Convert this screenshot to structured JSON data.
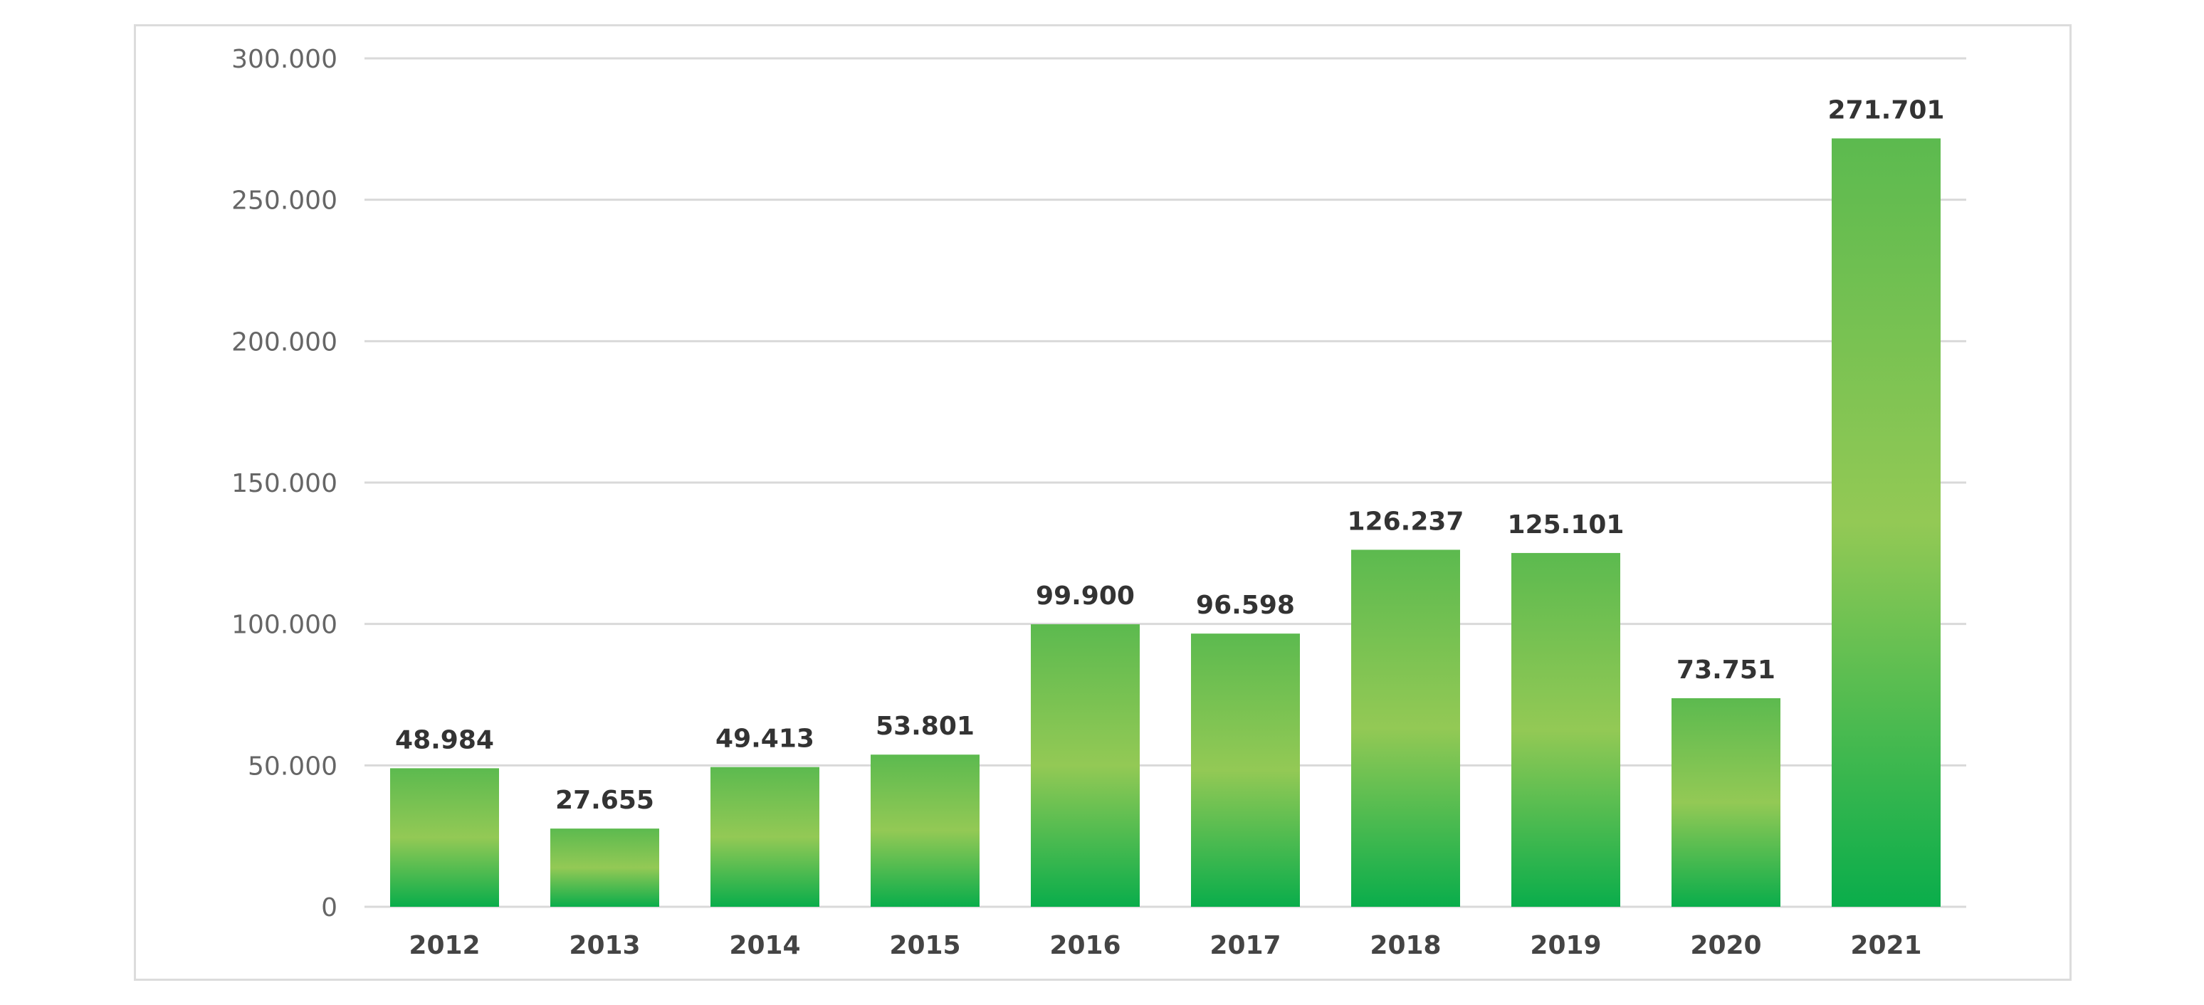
{
  "chart_data": {
    "type": "bar",
    "title": "",
    "xlabel": "",
    "ylabel": "",
    "categories": [
      "2012",
      "2013",
      "2014",
      "2015",
      "2016",
      "2017",
      "2018",
      "2019",
      "2020",
      "2021"
    ],
    "values": [
      48984,
      27655,
      49413,
      53801,
      99900,
      96598,
      126237,
      125101,
      73751,
      271701
    ],
    "value_labels": [
      "48.984",
      "27.655",
      "49.413",
      "53.801",
      "99.900",
      "96.598",
      "126.237",
      "125.101",
      "73.751",
      "271.701"
    ],
    "ylim": [
      0,
      300000
    ],
    "yticks": [
      0,
      50000,
      100000,
      150000,
      200000,
      250000,
      300000
    ],
    "ytick_labels": [
      "0",
      "50.000",
      "100.000",
      "150.000",
      "200.000",
      "250.000",
      "300.000"
    ],
    "grid": true,
    "legend": "none",
    "colors": {
      "bar_dark": "#0aad4b",
      "bar_light": "#93c955",
      "bar_top": "#5cba4f",
      "gridline": "#d9d9d9",
      "frame": "#dcdcdc"
    }
  }
}
